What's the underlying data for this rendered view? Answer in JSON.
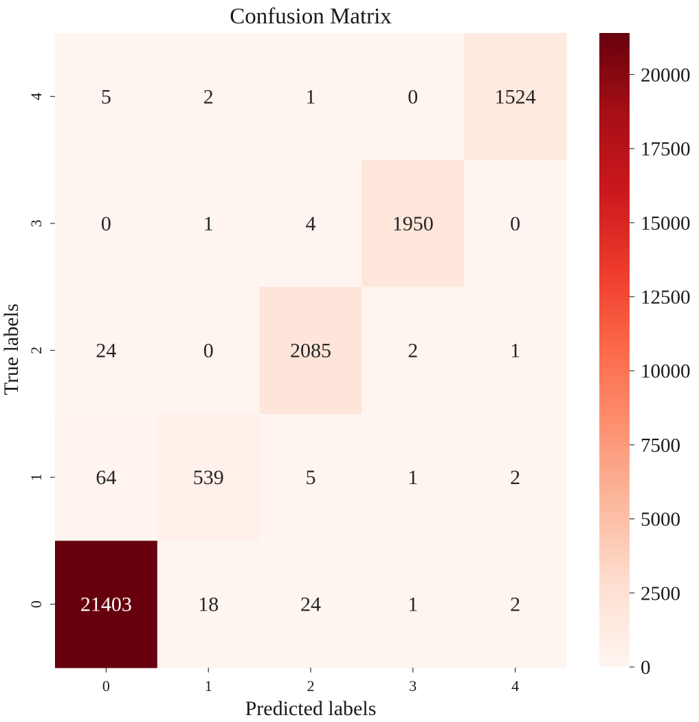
{
  "chart_data": {
    "type": "heatmap",
    "title": "Confusion Matrix",
    "xlabel": "Predicted labels",
    "ylabel": "True labels",
    "x_categories": [
      "0",
      "1",
      "2",
      "3",
      "4"
    ],
    "y_categories": [
      "4",
      "3",
      "2",
      "1",
      "0"
    ],
    "values": [
      [
        5,
        2,
        1,
        0,
        1524
      ],
      [
        0,
        1,
        4,
        1950,
        0
      ],
      [
        24,
        0,
        2085,
        2,
        1
      ],
      [
        64,
        539,
        5,
        1,
        2
      ],
      [
        21403,
        18,
        24,
        1,
        2
      ]
    ],
    "colorbar": {
      "min": 0,
      "max": 21403,
      "ticks": [
        0,
        2500,
        5000,
        7500,
        10000,
        12500,
        15000,
        17500,
        20000
      ],
      "colormap": "Reds",
      "low_color": "#fff5f0",
      "high_color": "#67000d"
    }
  }
}
